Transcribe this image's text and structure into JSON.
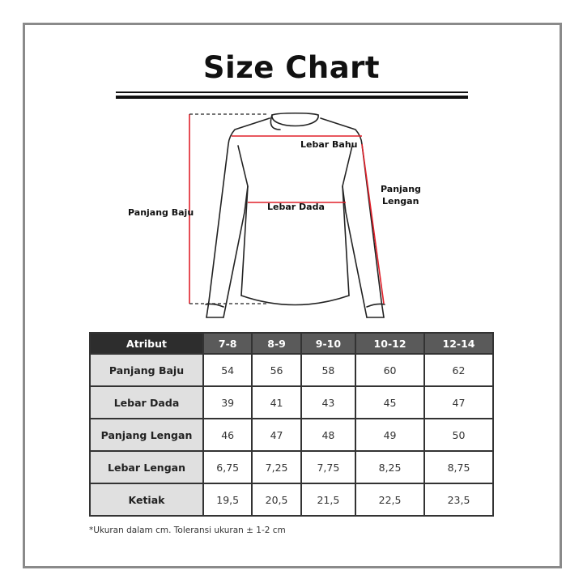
{
  "title": "Size Chart",
  "diagram": {
    "labels": {
      "shoulder": "Lebar Bahu",
      "sleeve_line1": "Panjang",
      "sleeve_line2": "Lengan",
      "chest": "Lebar Dada",
      "length": "Panjang Baju"
    },
    "colors": {
      "measure_line": "#e0202a",
      "outline": "#222222"
    }
  },
  "table": {
    "headers": [
      "Atribut",
      "7-8",
      "8-9",
      "9-10",
      "10-12",
      "12-14"
    ],
    "rows": [
      {
        "label": "Panjang Baju",
        "values": [
          "54",
          "56",
          "58",
          "60",
          "62"
        ]
      },
      {
        "label": "Lebar Dada",
        "values": [
          "39",
          "41",
          "43",
          "45",
          "47"
        ]
      },
      {
        "label": "Panjang Lengan",
        "values": [
          "46",
          "47",
          "48",
          "49",
          "50"
        ]
      },
      {
        "label": "Lebar Lengan",
        "values": [
          "6,75",
          "7,25",
          "7,75",
          "8,25",
          "8,75"
        ]
      },
      {
        "label": "Ketiak",
        "values": [
          "19,5",
          "20,5",
          "21,5",
          "22,5",
          "23,5"
        ]
      }
    ],
    "colors": {
      "header_first": "#2d2d2d",
      "header": "#5a5a5a",
      "label_cell": "#e0e0e0"
    }
  },
  "footnote": "*Ukuran dalam cm. Toleransi ukuran ± 1-2 cm"
}
